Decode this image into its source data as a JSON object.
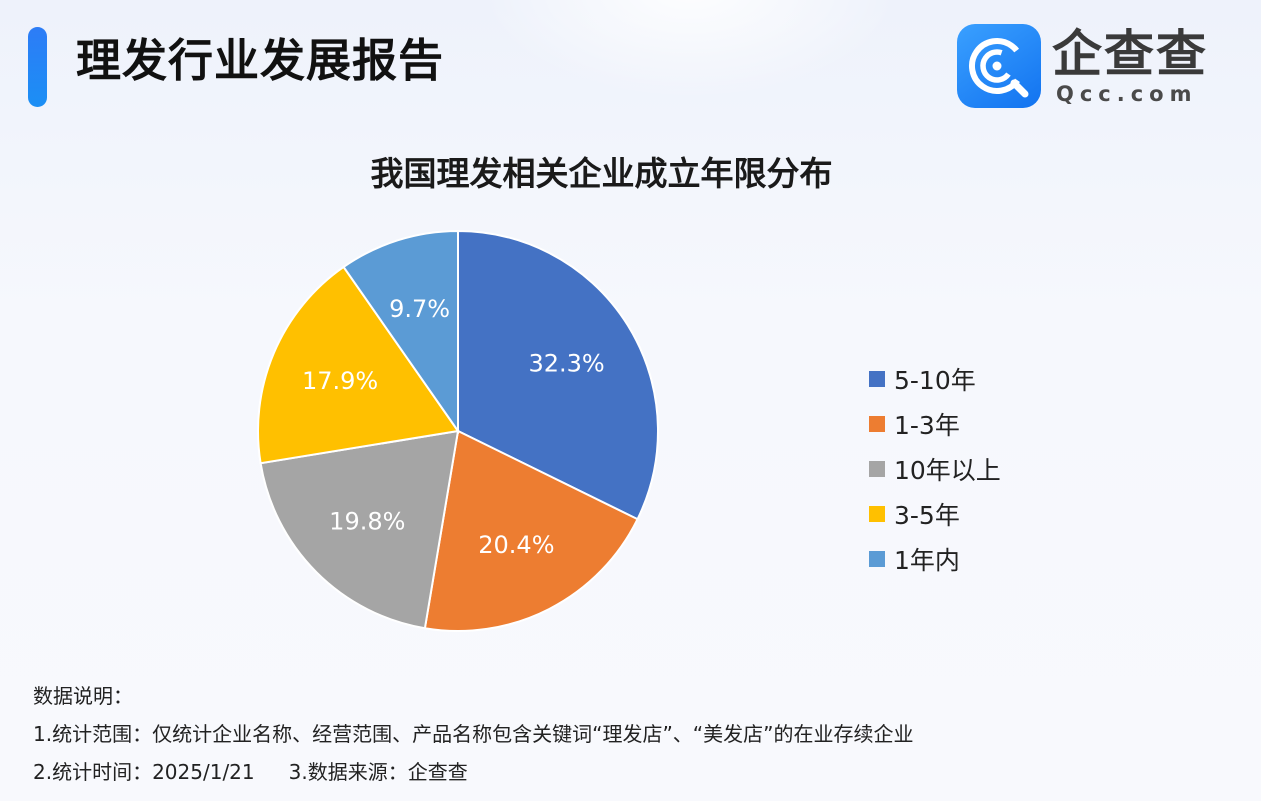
{
  "header": {
    "title": "理发行业发展报告"
  },
  "brand": {
    "name": "企查查",
    "domain": "Qcc.com",
    "color": "#1a7df4"
  },
  "chart_data": {
    "type": "pie",
    "title": "我国理发相关企业成立年限分布",
    "unit": "%",
    "start_angle_deg": 0,
    "direction": "clockwise",
    "legend_position": "right",
    "slices": [
      {
        "label": "5-10年",
        "value": 32.3,
        "display": "32.3%",
        "color": "#4472c4"
      },
      {
        "label": "1-3年",
        "value": 20.4,
        "display": "20.4%",
        "color": "#ed7d31"
      },
      {
        "label": "10年以上",
        "value": 19.8,
        "display": "19.8%",
        "color": "#a5a5a5"
      },
      {
        "label": "3-5年",
        "value": 17.9,
        "display": "17.9%",
        "color": "#ffc000"
      },
      {
        "label": "1年内",
        "value": 9.7,
        "display": "9.7%",
        "color": "#5b9bd5"
      }
    ]
  },
  "notes": {
    "heading": "数据说明：",
    "scope": "1.统计范围：仅统计企业名称、经营范围、产品名称包含关键词“理发店”、“美发店”的在业存续企业",
    "time": "2.统计时间：2025/1/21",
    "source": "3.数据来源：企查查"
  }
}
